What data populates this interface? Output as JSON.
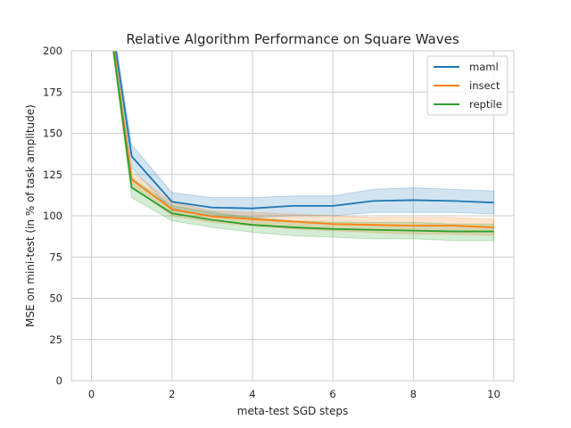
{
  "chart_data": {
    "type": "line",
    "title": "Relative Algorithm Performance on Square Waves",
    "xlabel": "meta-test SGD steps",
    "ylabel": "MSE on mini-test (in % of task amplitude)",
    "xlim": [
      -0.5,
      10.5
    ],
    "ylim": [
      0,
      200
    ],
    "xticks": [
      0,
      2,
      4,
      6,
      8,
      10
    ],
    "yticks": [
      0,
      25,
      50,
      75,
      100,
      125,
      150,
      175,
      200
    ],
    "grid": true,
    "legend_position": "top-right",
    "x": [
      0,
      1,
      2,
      3,
      4,
      5,
      6,
      7,
      8,
      9,
      10
    ],
    "series": [
      {
        "name": "maml",
        "color": "#1f77b4",
        "values": [
          300,
          136,
          108.5,
          105,
          104.5,
          106,
          106,
          109,
          109.5,
          109,
          108
        ],
        "lower": [
          300,
          129,
          103,
          100,
          99,
          100,
          100,
          102,
          102,
          102,
          101
        ],
        "upper": [
          300,
          143,
          114,
          111,
          111,
          112,
          112,
          116,
          117,
          116,
          115
        ]
      },
      {
        "name": "insect",
        "color": "#ff7f0e",
        "values": [
          300,
          122,
          104,
          99.5,
          98,
          96.5,
          95,
          94.5,
          94,
          94,
          93
        ],
        "lower": [
          300,
          118,
          100,
          96,
          94,
          92,
          91,
          90,
          89,
          89,
          88
        ],
        "upper": [
          300,
          127,
          108,
          103,
          102,
          101,
          100,
          99,
          99,
          99,
          98
        ]
      },
      {
        "name": "reptile",
        "color": "#2ca02c",
        "values": [
          300,
          117,
          101.5,
          97.5,
          94.5,
          93,
          92,
          91.5,
          91,
          90.5,
          90.5
        ],
        "lower": [
          300,
          111,
          97,
          93,
          90,
          88,
          87,
          86,
          86,
          85,
          85
        ],
        "upper": [
          300,
          123,
          106,
          102,
          99,
          97,
          96,
          96,
          96,
          95,
          95
        ]
      }
    ]
  }
}
